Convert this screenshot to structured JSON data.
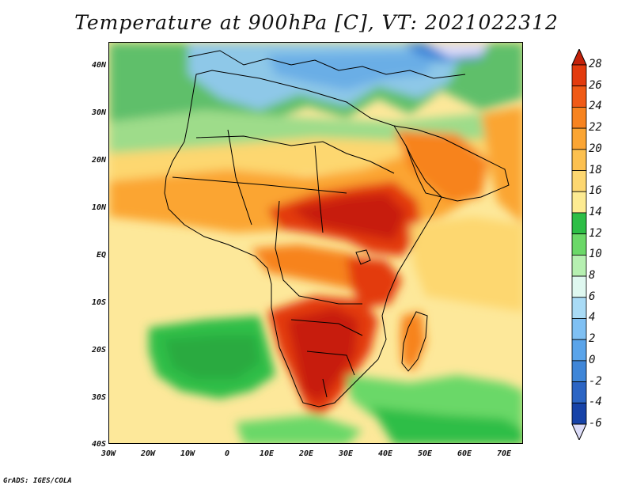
{
  "title": "Temperature at 900hPa [C], VT: 2021022312",
  "credit": "GrADS: IGES/COLA",
  "axes": {
    "lat_labels": [
      "40N",
      "30N",
      "20N",
      "10N",
      "EQ",
      "10S",
      "20S",
      "30S",
      "40S"
    ],
    "lat_values": [
      40,
      30,
      20,
      10,
      0,
      -10,
      -20,
      -30,
      -40
    ],
    "lon_labels": [
      "30W",
      "20W",
      "10W",
      "0",
      "10E",
      "20E",
      "30E",
      "40E",
      "50E",
      "60E",
      "70E"
    ],
    "lon_values": [
      -30,
      -20,
      -10,
      0,
      10,
      20,
      30,
      40,
      50,
      60,
      70
    ],
    "lon_range": [
      -30,
      75
    ],
    "lat_range": [
      -40,
      45
    ]
  },
  "colorbar": {
    "labels": [
      "28",
      "26",
      "24",
      "22",
      "20",
      "18",
      "16",
      "14",
      "12",
      "10",
      "8",
      "6",
      "4",
      "2",
      "0",
      "-2",
      "-4",
      "-6"
    ],
    "colors": [
      "#e33b0e",
      "#f05a16",
      "#f7831f",
      "#fba533",
      "#fcc04f",
      "#fdd770",
      "#fdeb92",
      "#2dbe46",
      "#6bd868",
      "#b6f0b1",
      "#dff8f0",
      "#a9dbf6",
      "#7fc0f3",
      "#5aa4ea",
      "#3f86d8",
      "#2c65c4",
      "#1743a8",
      "#0b2276"
    ],
    "top_arrow_color": "#c4220a",
    "bottom_arrow_color": "#dcdcf8"
  },
  "map": {
    "ocean_color": "#fde89a",
    "warm_land": "#d9331a",
    "hot_core": "#c71f0c"
  }
}
